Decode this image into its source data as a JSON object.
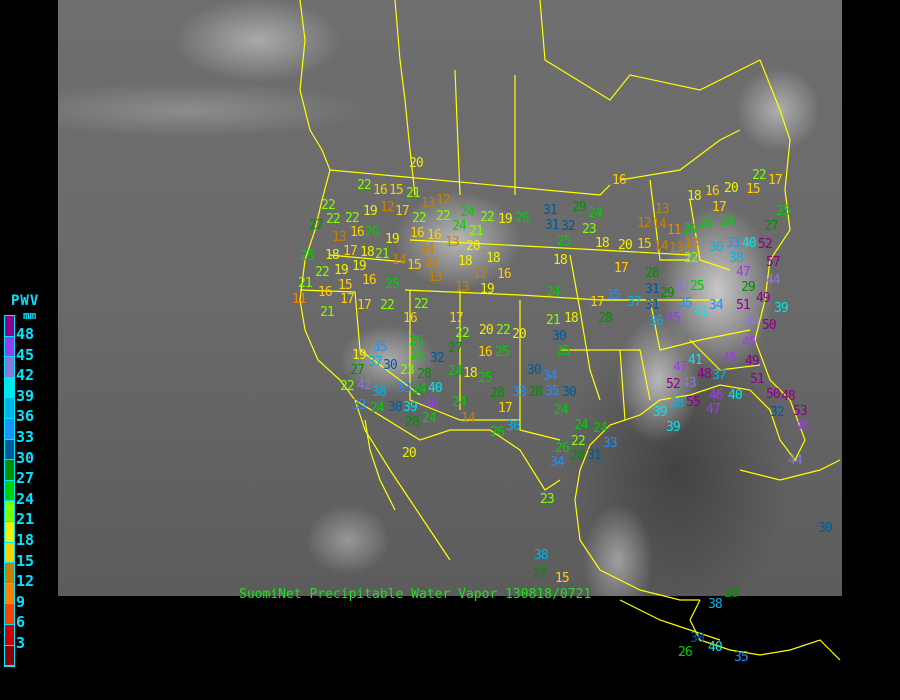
{
  "caption": "SuomiNet Precipitable Water Vapor 130818/0721",
  "legend": {
    "title": "PWV",
    "unit": "mm",
    "ticks": [
      "48",
      "45",
      "42",
      "39",
      "36",
      "33",
      "30",
      "27",
      "24",
      "21",
      "18",
      "15",
      "12",
      "9",
      "6",
      "3"
    ],
    "colors": [
      "#8c008c",
      "#9a3cf0",
      "#8a78d8",
      "#00e8e8",
      "#00b4e6",
      "#1e90ff",
      "#005a96",
      "#009000",
      "#00d000",
      "#80ff00",
      "#f0f000",
      "#ffd000",
      "#c88000",
      "#ff8000",
      "#ff4000",
      "#d00000",
      "#8b0000"
    ]
  },
  "map_colors": {
    "borders": "#ffff00"
  },
  "stations": [
    22,
    16,
    15,
    21,
    20,
    12,
    13,
    12,
    19,
    17,
    22,
    22,
    24,
    22,
    19,
    26,
    22,
    22,
    27,
    22,
    13,
    16,
    17,
    26,
    18,
    19,
    16,
    16,
    13,
    24,
    21,
    20,
    14,
    13,
    18,
    18,
    16,
    12,
    13,
    19,
    19,
    21,
    14,
    15,
    13,
    18,
    19,
    25,
    22,
    21,
    11,
    15,
    16,
    25,
    16,
    17,
    17,
    22,
    21,
    16,
    22,
    17,
    22,
    20,
    22,
    20,
    27,
    26,
    25,
    32,
    19,
    27,
    37,
    35,
    30,
    23,
    28,
    24,
    40,
    46,
    33,
    39,
    30,
    28,
    24,
    33,
    42,
    38,
    22,
    24,
    18,
    25,
    28,
    24,
    14,
    16,
    25,
    30,
    28,
    17,
    26,
    36,
    20,
    24,
    24,
    18,
    21,
    17,
    28,
    30,
    25,
    34,
    33,
    35,
    30,
    24,
    24,
    22,
    24,
    26,
    28,
    34,
    31,
    33,
    38,
    27,
    23,
    16,
    31,
    31,
    32,
    29,
    24,
    25,
    23,
    18,
    18,
    17,
    20,
    15,
    12,
    14,
    11,
    14,
    13,
    13,
    24,
    22,
    18,
    17,
    24,
    13,
    24,
    16,
    20,
    15,
    17,
    22,
    25,
    27,
    33,
    36,
    38,
    40,
    52,
    57,
    44,
    47,
    29,
    28,
    31,
    29,
    42,
    25,
    35,
    37,
    31,
    35,
    41,
    34,
    36,
    45,
    51,
    50,
    49,
    44,
    39,
    47,
    41,
    45,
    45,
    49,
    48,
    43,
    37,
    52,
    51,
    50,
    55,
    38,
    46,
    40,
    47,
    44,
    46,
    53,
    48,
    32,
    39,
    39,
    30,
    38,
    28,
    30,
    40,
    35,
    26,
    15
  ]
}
